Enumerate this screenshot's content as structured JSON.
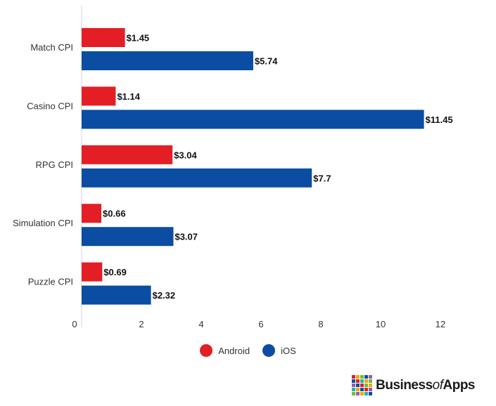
{
  "chart_data": {
    "type": "bar",
    "orientation": "horizontal",
    "categories": [
      "Match CPI",
      "Casino CPI",
      "RPG CPI",
      "Simulation CPI",
      "Puzzle CPI"
    ],
    "series": [
      {
        "name": "Android",
        "color": "#e31e24",
        "values": [
          1.45,
          1.14,
          3.04,
          0.66,
          0.69
        ],
        "labels": [
          "$1.45",
          "$1.14",
          "$3.04",
          "$0.66",
          "$0.69"
        ]
      },
      {
        "name": "iOS",
        "color": "#0a4da2",
        "values": [
          5.74,
          11.45,
          7.7,
          3.07,
          2.32
        ],
        "labels": [
          "$5.74",
          "$11.45",
          "$7.7",
          "$3.07",
          "$2.32"
        ]
      }
    ],
    "xlim": [
      0,
      12
    ],
    "xticks": [
      "0",
      "2",
      "4",
      "6",
      "8",
      "10",
      "12"
    ],
    "grid": false,
    "legend_position": "bottom"
  },
  "brand": {
    "prefix": "Business",
    "of": "of",
    "suffix": "Apps",
    "logo_colors": [
      "#e31e24",
      "#f7a600",
      "#6bbf3b",
      "#0a4da2",
      "#9b59b6",
      "#0a4da2",
      "#e31e24",
      "#1abc9c",
      "#f7a600",
      "#6bbf3b",
      "#9b59b6",
      "#0a4da2",
      "#e31e24",
      "#6bbf3b",
      "#f7a600",
      "#1abc9c",
      "#f7a600",
      "#0a4da2",
      "#e31e24",
      "#9b59b6",
      "#6bbf3b",
      "#9b59b6",
      "#f7a600",
      "#1abc9c",
      "#0a4da2"
    ]
  }
}
